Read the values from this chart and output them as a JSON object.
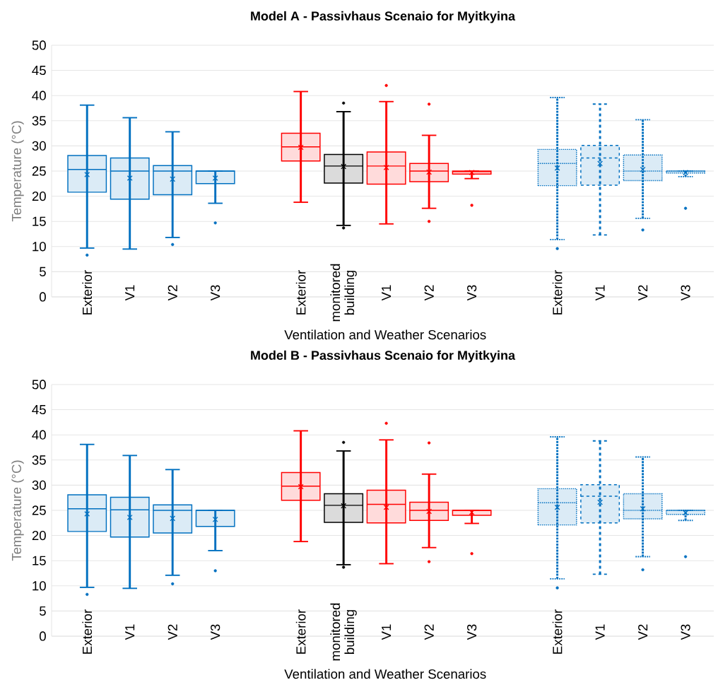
{
  "chart_data": [
    {
      "type": "box",
      "title": "Model A - Passivhaus Scenaio for Myitkyina",
      "xlabel": "Ventilation and Weather Scenarios",
      "ylabel": "Temperature (°C)",
      "categories": [
        "Exterior",
        "V1",
        "V2",
        "V3",
        null,
        "Exterior",
        "monitored building",
        "V1",
        "V2",
        "V3",
        null,
        "Exterior",
        "V1",
        "V2",
        "V3"
      ],
      "ylim": [
        0,
        50
      ],
      "yticks": [
        0,
        5,
        10,
        15,
        20,
        25,
        30,
        35,
        40,
        45,
        50
      ],
      "grid": "y",
      "series": [
        {
          "color": "#0070c0",
          "line_style": "solid",
          "boxes": [
            {
              "low": 9.7,
              "q1": 20.8,
              "median": 25.3,
              "q3": 28.1,
              "high": 38.1,
              "mean": 24.3,
              "outliers": [
                8.3
              ]
            },
            {
              "low": 9.5,
              "q1": 19.4,
              "median": 25.0,
              "q3": 27.6,
              "high": 35.6,
              "mean": 23.6
            },
            {
              "low": 11.8,
              "q1": 20.3,
              "median": 25.0,
              "q3": 26.1,
              "high": 32.8,
              "mean": 23.4,
              "outliers": [
                10.4
              ]
            },
            {
              "low": 18.6,
              "q1": 22.5,
              "median": 25.0,
              "q3": 25.0,
              "high": 25.0,
              "mean": 23.6,
              "outliers": [
                14.7
              ]
            },
            null,
            null,
            null,
            null,
            null,
            null,
            null,
            null,
            null,
            null,
            null
          ]
        },
        {
          "color": "#ff0000",
          "line_style": "solid",
          "boxes": [
            null,
            null,
            null,
            null,
            null,
            {
              "low": 18.8,
              "q1": 27.0,
              "median": 29.8,
              "q3": 32.5,
              "high": 40.8,
              "mean": 29.7
            },
            null,
            {
              "low": 14.5,
              "q1": 22.4,
              "median": 26.0,
              "q3": 28.8,
              "high": 38.8,
              "mean": 25.7,
              "outliers": [
                42.0
              ]
            },
            {
              "low": 17.6,
              "q1": 22.9,
              "median": 25.0,
              "q3": 26.5,
              "high": 32.1,
              "mean": 24.8,
              "outliers": [
                38.3,
                15.0
              ]
            },
            {
              "low": 23.5,
              "q1": 24.4,
              "median": 24.9,
              "q3": 25.0,
              "high": 25.0,
              "mean": 24.7,
              "outliers": [
                18.2
              ]
            },
            null,
            null,
            null,
            null,
            null
          ]
        },
        {
          "color": "#000000",
          "line_style": "solid",
          "boxes": [
            null,
            null,
            null,
            null,
            null,
            null,
            {
              "low": 14.2,
              "q1": 22.6,
              "median": 26.0,
              "q3": 28.3,
              "high": 36.8,
              "mean": 25.9,
              "outliers": [
                38.5,
                13.7
              ]
            },
            null,
            null,
            null,
            null,
            null,
            null,
            null,
            null
          ]
        },
        {
          "color": "#0070c0",
          "line_style": "dotted",
          "boxes": [
            null,
            null,
            null,
            null,
            null,
            null,
            null,
            null,
            null,
            null,
            null,
            {
              "low": 11.4,
              "q1": 22.1,
              "median": 26.5,
              "q3": 29.3,
              "high": 39.6,
              "mean": 25.6,
              "outliers": [
                9.6
              ]
            },
            null,
            {
              "low": 15.6,
              "q1": 23.1,
              "median": 25.0,
              "q3": 28.2,
              "high": 35.2,
              "mean": 25.3,
              "outliers": [
                13.3
              ]
            },
            {
              "low": 23.9,
              "q1": 24.6,
              "median": 25.0,
              "q3": 25.0,
              "high": 25.0,
              "mean": 24.7,
              "outliers": [
                17.6
              ]
            }
          ]
        },
        {
          "color": "#0070c0",
          "line_style": "dashed",
          "boxes": [
            null,
            null,
            null,
            null,
            null,
            null,
            null,
            null,
            null,
            null,
            null,
            null,
            {
              "low": 12.3,
              "q1": 22.2,
              "median": 27.6,
              "q3": 30.1,
              "high": 38.3,
              "mean": 26.5
            },
            null,
            null
          ]
        }
      ]
    },
    {
      "type": "box",
      "title": "Model B - Passivhaus Scenaio for Myitkyina",
      "xlabel": "Ventilation and Weather Scenarios",
      "ylabel": "Temperature (°C)",
      "categories": [
        "Exterior",
        "V1",
        "V2",
        "V3",
        null,
        "Exterior",
        "monitored building",
        "V1",
        "V2",
        "V3",
        null,
        "Exterior",
        "V1",
        "V2",
        "V3"
      ],
      "ylim": [
        0,
        50
      ],
      "yticks": [
        0,
        5,
        10,
        15,
        20,
        25,
        30,
        35,
        40,
        45,
        50
      ],
      "grid": "y",
      "series": [
        {
          "color": "#0070c0",
          "line_style": "solid",
          "boxes": [
            {
              "low": 9.7,
              "q1": 20.8,
              "median": 25.3,
              "q3": 28.1,
              "high": 38.1,
              "mean": 24.3,
              "outliers": [
                8.3
              ]
            },
            {
              "low": 9.5,
              "q1": 19.7,
              "median": 25.1,
              "q3": 27.6,
              "high": 35.9,
              "mean": 23.6
            },
            {
              "low": 12.1,
              "q1": 20.5,
              "median": 25.0,
              "q3": 26.1,
              "high": 33.1,
              "mean": 23.4,
              "outliers": [
                10.4
              ]
            },
            {
              "low": 17.0,
              "q1": 21.8,
              "median": 25.0,
              "q3": 25.0,
              "high": 25.0,
              "mean": 23.2,
              "outliers": [
                13.0
              ]
            },
            null,
            null,
            null,
            null,
            null,
            null,
            null,
            null,
            null,
            null,
            null
          ]
        },
        {
          "color": "#ff0000",
          "line_style": "solid",
          "boxes": [
            null,
            null,
            null,
            null,
            null,
            {
              "low": 18.8,
              "q1": 27.0,
              "median": 29.8,
              "q3": 32.5,
              "high": 40.8,
              "mean": 29.7
            },
            null,
            {
              "low": 14.4,
              "q1": 22.5,
              "median": 26.2,
              "q3": 29.0,
              "high": 39.0,
              "mean": 25.6,
              "outliers": [
                42.3
              ]
            },
            {
              "low": 17.6,
              "q1": 23.0,
              "median": 25.0,
              "q3": 26.6,
              "high": 32.2,
              "mean": 24.8,
              "outliers": [
                38.4,
                14.8
              ]
            },
            {
              "low": 22.4,
              "q1": 24.0,
              "median": 25.0,
              "q3": 25.0,
              "high": 25.0,
              "mean": 24.6,
              "outliers": [
                16.4
              ]
            },
            null,
            null,
            null,
            null,
            null
          ]
        },
        {
          "color": "#000000",
          "line_style": "solid",
          "boxes": [
            null,
            null,
            null,
            null,
            null,
            null,
            {
              "low": 14.2,
              "q1": 22.6,
              "median": 26.0,
              "q3": 28.3,
              "high": 36.8,
              "mean": 25.9,
              "outliers": [
                38.5,
                13.7
              ]
            },
            null,
            null,
            null,
            null,
            null,
            null,
            null,
            null
          ]
        },
        {
          "color": "#0070c0",
          "line_style": "dotted",
          "boxes": [
            null,
            null,
            null,
            null,
            null,
            null,
            null,
            null,
            null,
            null,
            null,
            {
              "low": 11.4,
              "q1": 22.1,
              "median": 26.5,
              "q3": 29.3,
              "high": 39.6,
              "mean": 25.6,
              "outliers": [
                9.6
              ]
            },
            null,
            {
              "low": 15.8,
              "q1": 23.3,
              "median": 25.0,
              "q3": 28.3,
              "high": 35.6,
              "mean": 25.3,
              "outliers": [
                13.2
              ]
            },
            {
              "low": 23.0,
              "q1": 24.2,
              "median": 25.0,
              "q3": 25.0,
              "high": 25.0,
              "mean": 24.5,
              "outliers": [
                15.8
              ]
            }
          ]
        },
        {
          "color": "#0070c0",
          "line_style": "dashed",
          "boxes": [
            null,
            null,
            null,
            null,
            null,
            null,
            null,
            null,
            null,
            null,
            null,
            null,
            {
              "low": 12.3,
              "q1": 22.5,
              "median": 27.8,
              "q3": 30.1,
              "high": 38.8,
              "mean": 26.6
            },
            null,
            null
          ]
        }
      ]
    }
  ]
}
